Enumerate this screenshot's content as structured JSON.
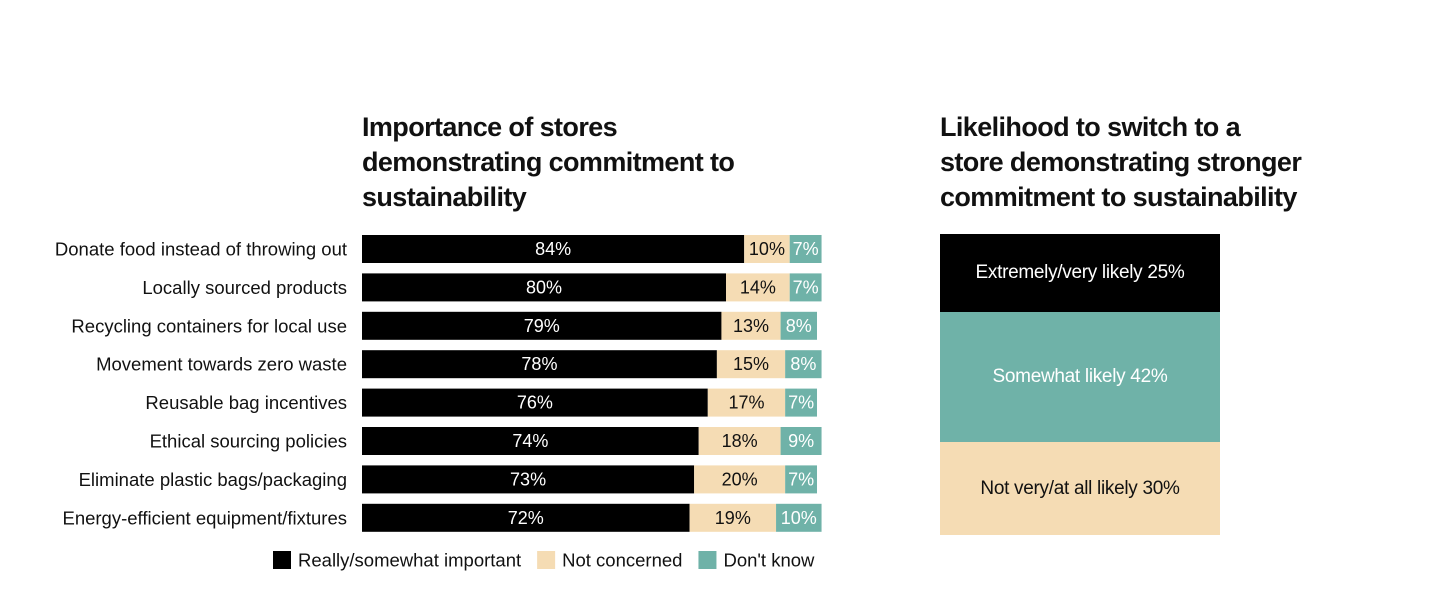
{
  "colors": {
    "important": "#000000",
    "not_concerned": "#f5dcb4",
    "dont_know": "#6fb2a8",
    "text_dark": "#111111",
    "text_light": "#ffffff"
  },
  "chart_data": [
    {
      "type": "bar",
      "orientation": "horizontal",
      "stacked": true,
      "title": "Importance of stores demonstrating commitment to sustainability",
      "title_lines": [
        "Importance of stores",
        "demonstrating commitment to",
        "sustainability"
      ],
      "categories": [
        "Donate food instead of throwing out",
        "Locally sourced products",
        "Recycling containers for local use",
        "Movement towards zero waste",
        "Reusable bag incentives",
        "Ethical sourcing policies",
        "Eliminate plastic bags/packaging",
        "Energy-efficient equipment/fixtures"
      ],
      "series": [
        {
          "key": "important",
          "name": "Really/somewhat important",
          "color": "#000000",
          "values": [
            84,
            80,
            79,
            78,
            76,
            74,
            73,
            72
          ]
        },
        {
          "key": "not_concerned",
          "name": "Not concerned",
          "color": "#f5dcb4",
          "values": [
            10,
            14,
            13,
            15,
            17,
            18,
            20,
            19
          ]
        },
        {
          "key": "dont_know",
          "name": "Don't know",
          "color": "#6fb2a8",
          "values": [
            7,
            7,
            8,
            8,
            7,
            9,
            7,
            10
          ]
        }
      ],
      "value_suffix": "%",
      "legend": "bottom",
      "xlabel": "",
      "ylabel": ""
    },
    {
      "type": "bar",
      "orientation": "vertical",
      "stacked": true,
      "title": "Likelihood to switch to a store demonstrating stronger commitment to sustainability",
      "title_lines": [
        "Likelihood to switch to a",
        "store demonstrating stronger",
        "commitment to sustainability"
      ],
      "segments": [
        {
          "key": "extremely",
          "label": "Extremely/very likely 25%",
          "value": 25,
          "color": "#000000",
          "text_color": "#ffffff"
        },
        {
          "key": "somewhat",
          "label": "Somewhat likely 42%",
          "value": 42,
          "color": "#6fb2a8",
          "text_color": "#ffffff"
        },
        {
          "key": "not_likely",
          "label": "Not very/at all likely 30%",
          "value": 30,
          "color": "#f5dcb4",
          "text_color": "#111111"
        }
      ]
    }
  ]
}
